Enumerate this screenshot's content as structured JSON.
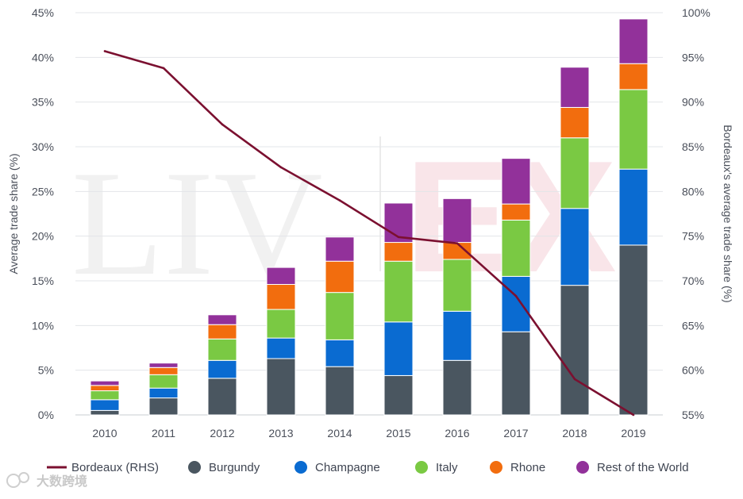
{
  "chart_data": {
    "type": "bar",
    "stacked": true,
    "categories": [
      "2010",
      "2011",
      "2012",
      "2013",
      "2014",
      "2015",
      "2016",
      "2017",
      "2018",
      "2019"
    ],
    "series": [
      {
        "name": "Burgundy",
        "color": "#4a5660",
        "values": [
          0.5,
          1.9,
          4.1,
          6.3,
          5.4,
          4.4,
          6.1,
          9.3,
          14.5,
          19.0
        ]
      },
      {
        "name": "Champagne",
        "color": "#0a6bd1",
        "values": [
          1.2,
          1.1,
          2.0,
          2.3,
          3.0,
          6.0,
          5.5,
          6.2,
          8.6,
          8.5
        ]
      },
      {
        "name": "Italy",
        "color": "#7ac943",
        "values": [
          1.0,
          1.5,
          2.4,
          3.2,
          5.3,
          6.8,
          5.8,
          6.3,
          7.9,
          8.9
        ]
      },
      {
        "name": "Rhone",
        "color": "#f26d0e",
        "values": [
          0.6,
          0.8,
          1.6,
          2.8,
          3.5,
          2.1,
          1.9,
          1.8,
          3.4,
          2.9
        ]
      },
      {
        "name": "Rest of the World",
        "color": "#92319a",
        "values": [
          0.5,
          0.5,
          1.1,
          1.9,
          2.7,
          4.4,
          4.9,
          5.1,
          4.5,
          5.0
        ]
      }
    ],
    "line": {
      "name": "Bordeaux (RHS)",
      "axis": "right",
      "color": "#7b1030",
      "values": [
        95.7,
        93.8,
        87.5,
        82.7,
        79.0,
        74.9,
        74.2,
        68.3,
        59.0,
        55.0
      ]
    },
    "ylabel": "Average trade share (%)",
    "ylabel_right": "Bordeaux's average trade share (%)",
    "ylim": [
      0,
      45
    ],
    "ylim_right": [
      55,
      100
    ],
    "yticks": [
      "0%",
      "5%",
      "10%",
      "15%",
      "20%",
      "25%",
      "30%",
      "35%",
      "40%",
      "45%"
    ],
    "yticks_right": [
      "55%",
      "60%",
      "65%",
      "70%",
      "75%",
      "80%",
      "85%",
      "90%",
      "95%",
      "100%"
    ],
    "grid": true,
    "legend": {
      "position": "bottom",
      "items": [
        "Bordeaux (RHS)",
        "Burgundy",
        "Champagne",
        "Italy",
        "Rhone",
        "Rest of the World"
      ]
    }
  },
  "watermark": {
    "left": "LIV",
    "right": "EX"
  },
  "brand": {
    "text": "大数跨境",
    "icon": "brand-logo-icon"
  }
}
